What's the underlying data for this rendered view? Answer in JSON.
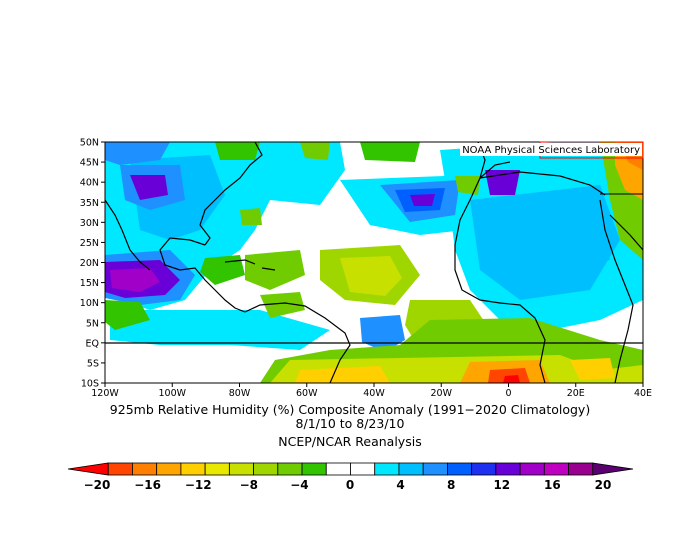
{
  "credit": "NOAA Physical Sciences Laboratory",
  "title_line1": "925mb Relative Humidity (%) Composite Anomaly (1991−2020 Climatology)",
  "title_line2": "8/1/10   to 8/23/10",
  "source": "NCEP/NCAR Reanalysis",
  "lat_labels": [
    "50N",
    "45N",
    "40N",
    "35N",
    "30N",
    "25N",
    "20N",
    "15N",
    "10N",
    "5N",
    "EQ",
    "5S",
    "10S"
  ],
  "lon_labels": [
    "120W",
    "100W",
    "80W",
    "60W",
    "40W",
    "20W",
    "0",
    "20E",
    "40E"
  ],
  "colorbar": {
    "tick_labels": [
      "−20",
      "−16",
      "−12",
      "−8",
      "−4",
      "0",
      "4",
      "8",
      "12",
      "16",
      "20"
    ],
    "colors": [
      "#ff0000",
      "#ff4500",
      "#ff7f00",
      "#ffa500",
      "#ffcf00",
      "#e8e800",
      "#c8e000",
      "#a0d600",
      "#70cc00",
      "#33c400",
      "#ffffff",
      "#ffffff",
      "#00e8ff",
      "#00bfff",
      "#1e90ff",
      "#0060ff",
      "#1e30f0",
      "#6a00d8",
      "#a000c8",
      "#c000c0",
      "#9a0090",
      "#5a0070"
    ]
  },
  "map_data": {
    "variable": "925mb relative humidity anomaly",
    "units": "%",
    "lon_range": [
      -120,
      40
    ],
    "lat_range": [
      -10,
      50
    ],
    "period": "8/1/10 to 8/23/10"
  }
}
